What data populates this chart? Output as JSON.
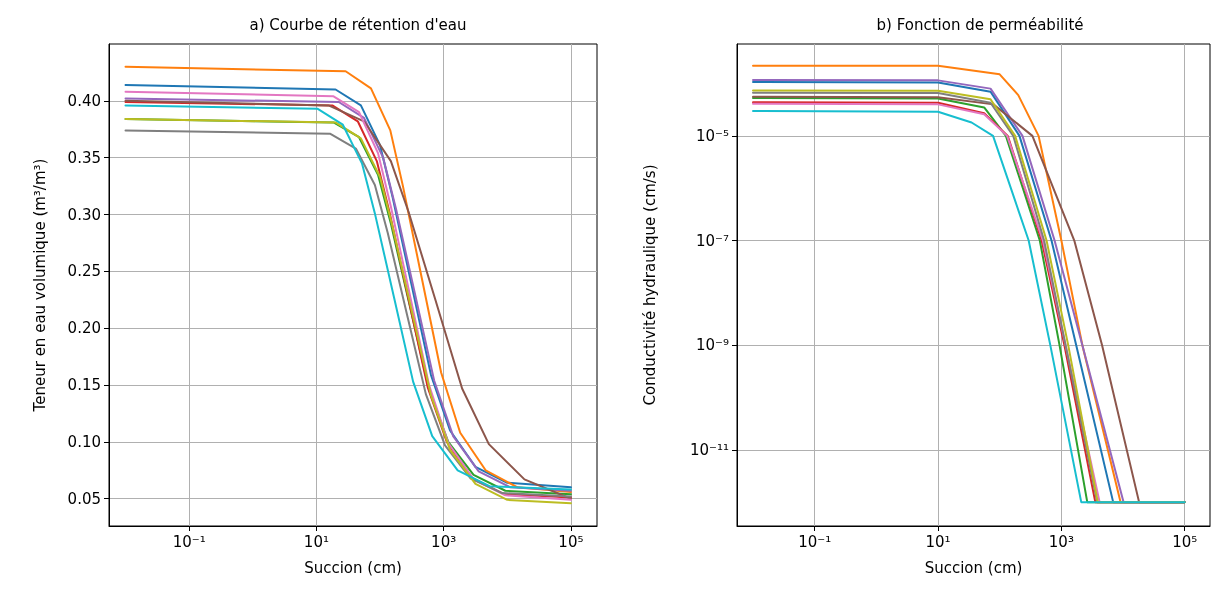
{
  "chart_data": [
    {
      "type": "line",
      "title": "a) Courbe de rétention d'eau",
      "xlabel": "Succion (cm)",
      "ylabel": "Teneur en eau volumique (m³/m³)",
      "log": "x",
      "grid": true,
      "xlim": [
        0.0055,
        257000
      ],
      "xticks": [
        {
          "value": 0.1,
          "label": "10⁻¹"
        },
        {
          "value": 10,
          "label": "10¹"
        },
        {
          "value": 1000,
          "label": "10³"
        },
        {
          "value": 100000,
          "label": "10⁵"
        }
      ],
      "ylim": [
        0.026,
        0.45
      ],
      "yticks": [
        {
          "value": 0.05,
          "label": "0.05"
        },
        {
          "value": 0.1,
          "label": "0.10"
        },
        {
          "value": 0.15,
          "label": "0.15"
        },
        {
          "value": 0.2,
          "label": "0.20"
        },
        {
          "value": 0.25,
          "label": "0.25"
        },
        {
          "value": 0.3,
          "label": "0.30"
        },
        {
          "value": 0.35,
          "label": "0.35"
        },
        {
          "value": 0.4,
          "label": "0.40"
        }
      ],
      "series": [
        {
          "color": "#1f77b4",
          "x": [
            0.01,
            20,
            50,
            100,
            158,
            316,
            631,
            1260,
            3160,
            10000,
            100000
          ],
          "values": [
            0.414,
            0.41,
            0.396,
            0.361,
            0.315,
            0.237,
            0.159,
            0.11,
            0.078,
            0.064,
            0.06
          ]
        },
        {
          "color": "#ff7f0e",
          "x": [
            0.01,
            28.8,
            72,
            145,
            229,
            457,
            912,
            1820,
            4570,
            14500,
            100000
          ],
          "values": [
            0.43,
            0.426,
            0.411,
            0.374,
            0.325,
            0.243,
            0.161,
            0.108,
            0.075,
            0.06,
            0.056
          ]
        },
        {
          "color": "#2ca02c",
          "x": [
            0.01,
            18.6,
            46.8,
            93,
            148,
            295,
            589,
            1180,
            2950,
            9330,
            100000
          ],
          "values": [
            0.384,
            0.381,
            0.368,
            0.335,
            0.292,
            0.219,
            0.146,
            0.1,
            0.071,
            0.057,
            0.054
          ]
        },
        {
          "color": "#d62728",
          "x": [
            0.01,
            17.8,
            44.7,
            89,
            141,
            282,
            562,
            1120,
            2820,
            8910,
            100000
          ],
          "values": [
            0.399,
            0.396,
            0.382,
            0.347,
            0.302,
            0.225,
            0.148,
            0.1,
            0.068,
            0.054,
            0.051
          ]
        },
        {
          "color": "#9467bd",
          "x": [
            0.01,
            22.4,
            56,
            112,
            178,
            355,
            708,
            1410,
            3550,
            11200,
            100000
          ],
          "values": [
            0.402,
            0.399,
            0.385,
            0.35,
            0.305,
            0.23,
            0.154,
            0.105,
            0.074,
            0.06,
            0.057
          ]
        },
        {
          "color": "#8c564b",
          "x": [
            0.01,
            15.5,
            56,
            148,
            282,
            741,
            1950,
            5130,
            18600,
            100000
          ],
          "values": [
            0.4,
            0.396,
            0.382,
            0.347,
            0.302,
            0.225,
            0.147,
            0.098,
            0.067,
            0.05
          ]
        },
        {
          "color": "#e377c2",
          "x": [
            0.01,
            18.6,
            46.8,
            93,
            148,
            295,
            589,
            1180,
            2950,
            9330,
            100000
          ],
          "values": [
            0.408,
            0.404,
            0.39,
            0.354,
            0.307,
            0.229,
            0.15,
            0.099,
            0.067,
            0.053,
            0.049
          ]
        },
        {
          "color": "#7f7f7f",
          "x": [
            0.01,
            16.6,
            41.7,
            83,
            132,
            263,
            525,
            1050,
            2630,
            8300,
            100000
          ],
          "values": [
            0.374,
            0.371,
            0.358,
            0.326,
            0.284,
            0.213,
            0.142,
            0.097,
            0.068,
            0.055,
            0.052
          ]
        },
        {
          "color": "#bcbd22",
          "x": [
            0.01,
            20,
            50,
            100,
            158,
            316,
            631,
            1260,
            3160,
            10000,
            100000
          ],
          "values": [
            0.384,
            0.381,
            0.367,
            0.333,
            0.289,
            0.215,
            0.141,
            0.093,
            0.063,
            0.049,
            0.046
          ]
        },
        {
          "color": "#17becf",
          "x": [
            0.01,
            10.5,
            26,
            52,
            83,
            166,
            331,
            661,
            1660,
            5250,
            100000
          ],
          "values": [
            0.396,
            0.393,
            0.379,
            0.345,
            0.301,
            0.227,
            0.153,
            0.105,
            0.075,
            0.061,
            0.058
          ]
        }
      ]
    },
    {
      "type": "line",
      "title": "b) Fonction de perméabilité",
      "xlabel": "Succion (cm)",
      "ylabel": "Conductivité hydraulique (cm/s)",
      "log": "xy",
      "grid": true,
      "xlim": [
        0.0055,
        257000
      ],
      "xticks": [
        {
          "value": 0.1,
          "label": "10⁻¹"
        },
        {
          "value": 10,
          "label": "10¹"
        },
        {
          "value": 1000,
          "label": "10³"
        },
        {
          "value": 100000,
          "label": "10⁵"
        }
      ],
      "ylim": [
        3.5e-13,
        0.00057
      ],
      "yticks": [
        {
          "value": 1e-11,
          "label": "10⁻¹¹"
        },
        {
          "value": 1e-09,
          "label": "10⁻⁹"
        },
        {
          "value": 1e-07,
          "label": "10⁻⁷"
        },
        {
          "value": 1e-05,
          "label": "10⁻⁵"
        }
      ],
      "series": [
        {
          "color": "#1f77b4",
          "x": [
            0.01,
            10,
            71,
            209,
            692,
            1740,
            6920,
            100000
          ],
          "values": [
            0.000107,
            0.000105,
            7e-05,
            1e-05,
            1e-07,
            1e-09,
            1e-12,
            1e-12
          ]
        },
        {
          "color": "#ff7f0e",
          "x": [
            0.01,
            10,
            100,
            200,
            427,
            1000,
            2190,
            9120,
            100000
          ],
          "values": [
            0.00022,
            0.000218,
            0.00015,
            6e-05,
            1e-05,
            1e-07,
            1e-09,
            1e-12,
            1e-12
          ]
        },
        {
          "color": "#2ca02c",
          "x": [
            0.01,
            10,
            56,
            126,
            447,
            933,
            2630,
            100000
          ],
          "values": [
            5.3e-05,
            5.2e-05,
            3.5e-05,
            1e-05,
            1e-07,
            1e-09,
            1e-12,
            1e-12
          ]
        },
        {
          "color": "#d62728",
          "x": [
            0.01,
            10,
            56,
            135,
            479,
            1120,
            3550,
            100000
          ],
          "values": [
            4.4e-05,
            4.3e-05,
            2.7e-05,
            1e-05,
            1e-07,
            1e-09,
            1e-12,
            1e-12
          ]
        },
        {
          "color": "#9467bd",
          "x": [
            0.01,
            10,
            71,
            234,
            776,
            2190,
            10200,
            100000
          ],
          "values": [
            0.000117,
            0.000115,
            8e-05,
            1e-05,
            1e-07,
            1e-09,
            1e-12,
            1e-12
          ]
        },
        {
          "color": "#8c564b",
          "x": [
            0.01,
            10,
            79,
            339,
            1620,
            4570,
            18200,
            100000
          ],
          "values": [
            5.6e-05,
            5.5e-05,
            4e-05,
            1e-05,
            1e-07,
            1e-09,
            1e-12,
            1e-12
          ]
        },
        {
          "color": "#e377c2",
          "x": [
            0.01,
            10,
            56,
            132,
            501,
            1170,
            4170,
            100000
          ],
          "values": [
            4.1e-05,
            4e-05,
            2.6e-05,
            1e-05,
            1e-07,
            1e-09,
            1e-12,
            1e-12
          ]
        },
        {
          "color": "#7f7f7f",
          "x": [
            0.01,
            10,
            71,
            166,
            525,
            1170,
            3800,
            100000
          ],
          "values": [
            6.7e-05,
            6.6e-05,
            4.3e-05,
            1e-05,
            1e-07,
            1e-09,
            1e-12,
            1e-12
          ]
        },
        {
          "color": "#bcbd22",
          "x": [
            0.01,
            10,
            71,
            178,
            575,
            1290,
            3890,
            100000
          ],
          "values": [
            7.4e-05,
            7.3e-05,
            5e-05,
            1e-05,
            1e-07,
            1e-09,
            1e-12,
            1e-12
          ]
        },
        {
          "color": "#17becf",
          "x": [
            0.01,
            10,
            35,
            78,
            295,
            661,
            2100,
            100000
          ],
          "values": [
            3e-05,
            2.9e-05,
            1.8e-05,
            1e-05,
            1e-07,
            1e-09,
            1e-12,
            1e-12
          ]
        }
      ]
    }
  ]
}
